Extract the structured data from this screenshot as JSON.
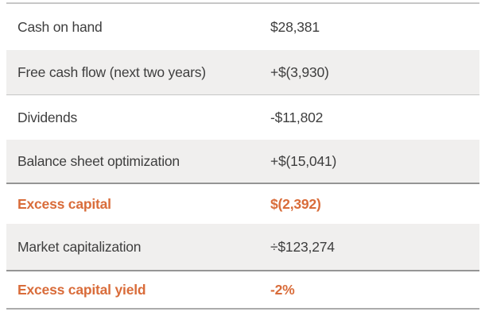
{
  "theme": {
    "accent_orange": "#d96c3a",
    "text_color": "#3e3e3e",
    "shaded_row_bg": "#f0efee",
    "rule_light": "#c7c7c7",
    "rule_heavy": "#959595"
  },
  "chart_data": {
    "type": "table",
    "title": "",
    "rows": [
      {
        "label": "Cash on hand",
        "value": "$28,381",
        "shaded": false,
        "emphasis": false
      },
      {
        "label": "Free cash flow (next two years)",
        "value": "+$(3,930)",
        "shaded": true,
        "emphasis": false
      },
      {
        "label": "Dividends",
        "value": "-$11,802",
        "shaded": false,
        "emphasis": false
      },
      {
        "label": "Balance sheet optimization",
        "value": "+$(15,041)",
        "shaded": true,
        "emphasis": false
      },
      {
        "label": "Excess capital",
        "value": "$(2,392)",
        "shaded": false,
        "emphasis": true
      },
      {
        "label": "Market capitalization",
        "value": "÷$123,274",
        "shaded": true,
        "emphasis": false
      },
      {
        "label": "Excess capital yield",
        "value": "-2%",
        "shaded": false,
        "emphasis": true
      }
    ]
  }
}
